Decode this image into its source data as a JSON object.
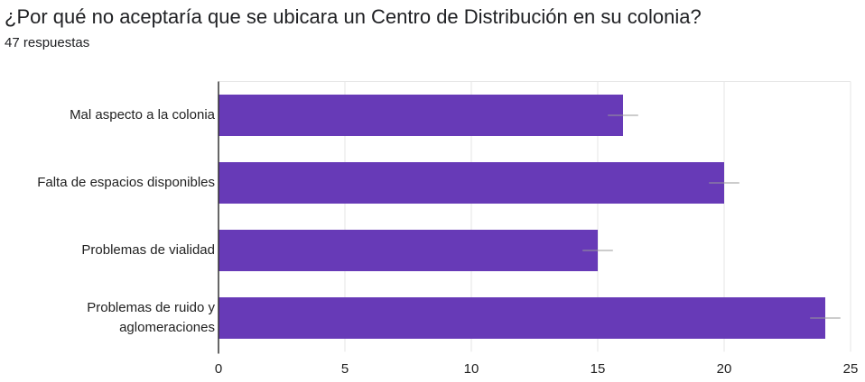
{
  "chart_data": {
    "type": "barh",
    "title": "¿Por qué no aceptaría que se ubicara un Centro de Distribución en su colonia?",
    "subtitle": "47 respuestas",
    "categories": [
      "Mal aspecto a la colonia",
      "Falta de espacios disponibles",
      "Problemas de vialidad",
      "Problemas de ruido y aglomeraciones"
    ],
    "values": [
      16,
      20,
      15,
      24
    ],
    "errors": [
      0.6,
      0.6,
      0.6,
      0.6
    ],
    "color": "#673ab7",
    "xlim": [
      0,
      25
    ],
    "xticks": [
      0,
      5,
      10,
      15,
      20,
      25
    ],
    "grid": true
  }
}
